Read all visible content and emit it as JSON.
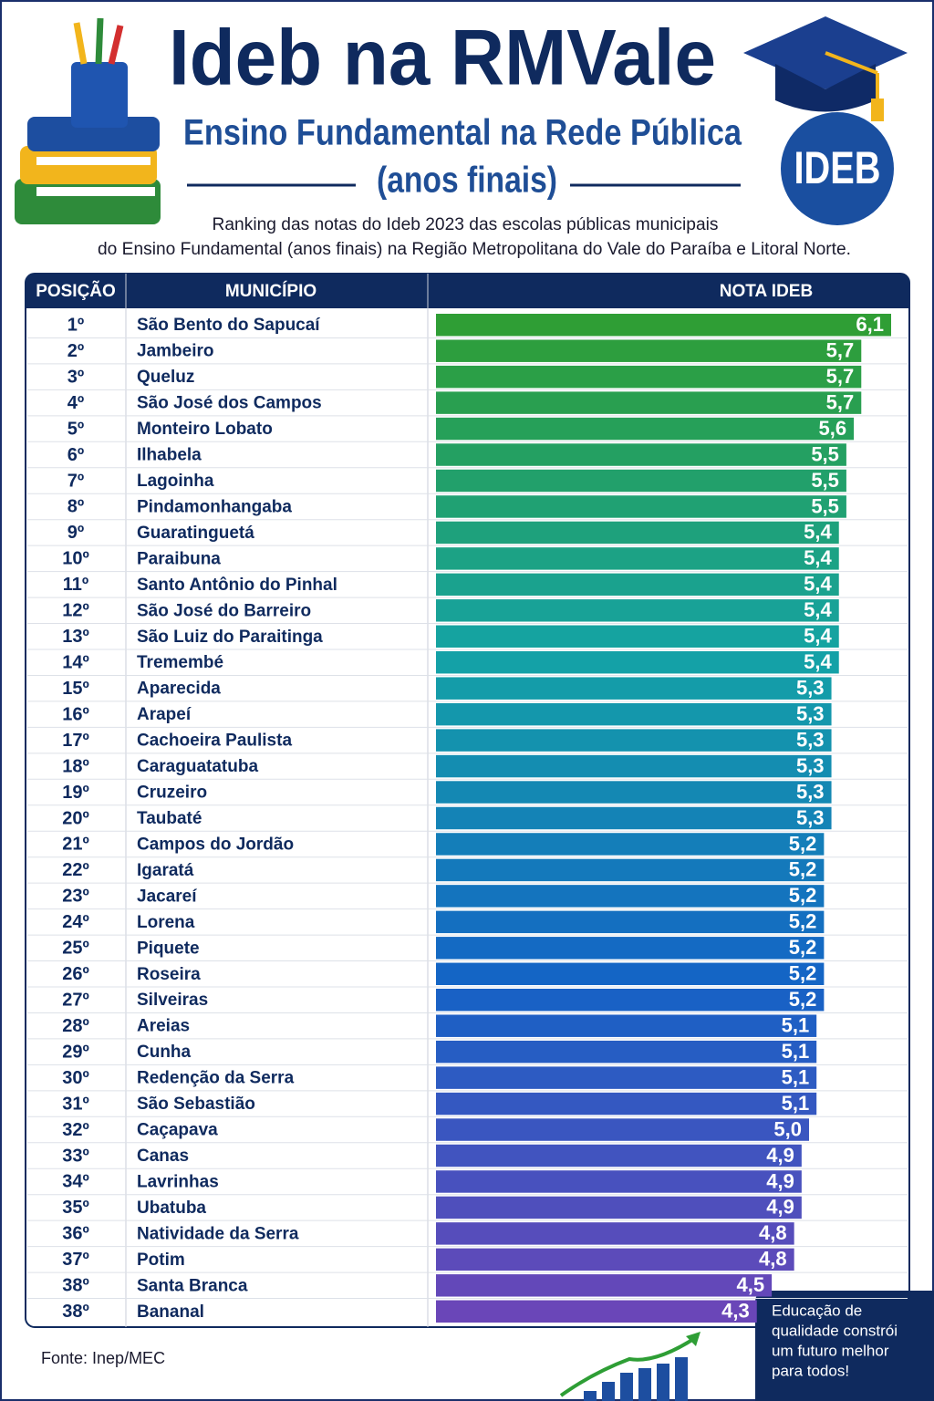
{
  "chart_data": {
    "type": "bar",
    "title": "Ideb na RMVale",
    "subtitle": "Ensino Fundamental na Rede Pública",
    "subtitle2": "(anos finais)",
    "badge": "IDEB",
    "description": [
      "Ranking das notas do Ideb 2023 das escolas públicas municipais",
      "do Ensino Fundamental (anos finais) na Região Metropolitana do Vale do Paraíba e Litoral Norte."
    ],
    "headers": [
      "POSIÇÃO",
      "MUNICÍPIO",
      "NOTA IDEB"
    ],
    "positions": [
      "1º",
      "2º",
      "3º",
      "4º",
      "5º",
      "6º",
      "7º",
      "8º",
      "9º",
      "10º",
      "11º",
      "12º",
      "13º",
      "14º",
      "15º",
      "16º",
      "17º",
      "18º",
      "19º",
      "20º",
      "21º",
      "22º",
      "23º",
      "24º",
      "25º",
      "26º",
      "27º",
      "28º",
      "29º",
      "30º",
      "31º",
      "32º",
      "33º",
      "34º",
      "35º",
      "36º",
      "37º",
      "38º",
      "38º"
    ],
    "categories": [
      "São Bento do Sapucaí",
      "Jambeiro",
      "Queluz",
      "São José dos Campos",
      "Monteiro Lobato",
      "Ilhabela",
      "Lagoinha",
      "Pindamonhangaba",
      "Guaratinguetá",
      "Paraibuna",
      "Santo Antônio do Pinhal",
      "São José do Barreiro",
      "São Luiz do Paraitinga",
      "Tremembé",
      "Aparecida",
      "Arapeí",
      "Cachoeira Paulista",
      "Caraguatatuba",
      "Cruzeiro",
      "Taubaté",
      "Campos do Jordão",
      "Igaratá",
      "Jacareí",
      "Lorena",
      "Piquete",
      "Roseira",
      "Silveiras",
      "Areias",
      "Cunha",
      "Redenção da Serra",
      "São Sebastião",
      "Caçapava",
      "Canas",
      "Lavrinhas",
      "Ubatuba",
      "Natividade da Serra",
      "Potim",
      "Santa Branca",
      "Bananal"
    ],
    "values": [
      6.1,
      5.7,
      5.7,
      5.7,
      5.6,
      5.5,
      5.5,
      5.5,
      5.4,
      5.4,
      5.4,
      5.4,
      5.4,
      5.4,
      5.3,
      5.3,
      5.3,
      5.3,
      5.3,
      5.3,
      5.2,
      5.2,
      5.2,
      5.2,
      5.2,
      5.2,
      5.2,
      5.1,
      5.1,
      5.1,
      5.1,
      5.0,
      4.9,
      4.9,
      4.9,
      4.8,
      4.8,
      4.5,
      4.3
    ],
    "value_labels": [
      "6,1",
      "5,7",
      "5,7",
      "5,7",
      "5,6",
      "5,5",
      "5,5",
      "5,5",
      "5,4",
      "5,4",
      "5,4",
      "5,4",
      "5,4",
      "5,4",
      "5,3",
      "5,3",
      "5,3",
      "5,3",
      "5,3",
      "5,3",
      "5,2",
      "5,2",
      "5,2",
      "5,2",
      "5,2",
      "5,2",
      "5,2",
      "5,1",
      "5,1",
      "5,1",
      "5,1",
      "5,0",
      "4,9",
      "4,9",
      "4,9",
      "4,8",
      "4,8",
      "4,5",
      "4,3"
    ],
    "color_scale": [
      "#2f9e35",
      "#14a3a6",
      "#1463c6",
      "#6a46b8"
    ],
    "source": "Fonte: Inep/MEC",
    "slogan": [
      "Educação de",
      "qualidade constrói",
      "um futuro melhor",
      "para todos!"
    ]
  }
}
